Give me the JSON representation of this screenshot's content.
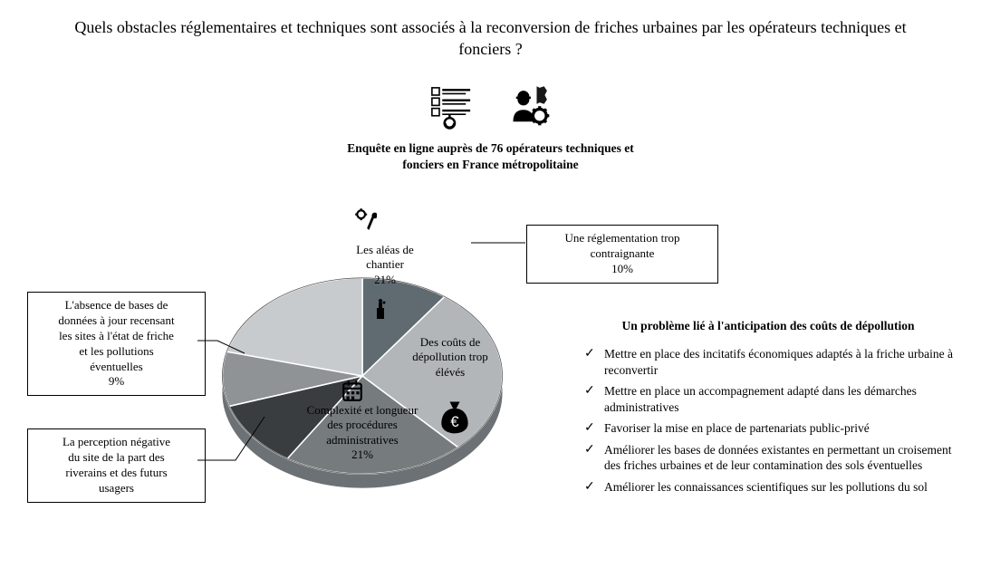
{
  "title": "Quels obstacles réglementaires et techniques sont associés à la reconversion de friches urbaines par les opérateurs techniques et fonciers ?",
  "subtitle_line1": "Enquête en ligne auprès de 76 opérateurs techniques et",
  "subtitle_line2": "fonciers en France métropolitaine",
  "chart": {
    "type": "pie",
    "style": "3d",
    "background_color": "#ffffff",
    "border_color": "#000000",
    "label_fontsize": 13,
    "slices": [
      {
        "label_line1": "Une réglementation trop",
        "label_line2": "contraignante",
        "pct_text": "10%",
        "value": 10,
        "color": "#5f6b71",
        "callout": true,
        "callout_side": "right"
      },
      {
        "label_line1": "Des coûts de",
        "label_line2": "dépollution trop",
        "label_line3": "élévés",
        "pct_text": "",
        "value": 28,
        "color": "#b2b6b9",
        "callout": false
      },
      {
        "label_line1": "Complexité et longueur",
        "label_line2": "des procédures",
        "label_line3": "administratives",
        "pct_text": "21%",
        "value": 21,
        "color": "#767b7e",
        "callout": false
      },
      {
        "label_line1": "La perception négative",
        "label_line2": "du site de la part des",
        "label_line3": "riverains et des futurs",
        "label_line4": "usagers",
        "pct_text": "",
        "value": 11,
        "color": "#3a3d3f",
        "callout": true,
        "callout_side": "left"
      },
      {
        "label_line1": "L'absence de bases de",
        "label_line2": "données à jour recensant",
        "label_line3": "les sites à l'état de friche",
        "label_line4": "et les pollutions",
        "label_line5": "éventuelles",
        "pct_text": "9%",
        "value": 9,
        "color": "#8f9396",
        "callout": true,
        "callout_side": "left"
      },
      {
        "label_line1": "Les aléas de",
        "label_line2": "chantier",
        "pct_text": "21%",
        "value": 21,
        "color": "#c8cbcd",
        "callout": false
      }
    ]
  },
  "problem": {
    "title": "Un problème lié à l'anticipation des coûts de dépollution",
    "items": [
      "Mettre en place des incitatifs économiques adaptés à la friche urbaine à reconvertir",
      "Mettre en place un accompagnement adapté dans les démarches administratives",
      "Favoriser la mise en place de partenariats public-privé",
      "Améliorer les bases de données existantes en permettant un croisement des friches urbaines et de leur contamination des sols éventuelles",
      "Améliorer les connaissances scientifiques sur les pollutions du sol"
    ]
  },
  "icons": {
    "survey_form": "survey-form-icon",
    "worker_gear": "worker-gear-icon",
    "wrench_gear": "wrench-gear-icon",
    "pollution": "pollution-icon",
    "calendar": "calendar-icon",
    "moneybag_euro": "moneybag-euro-icon"
  }
}
